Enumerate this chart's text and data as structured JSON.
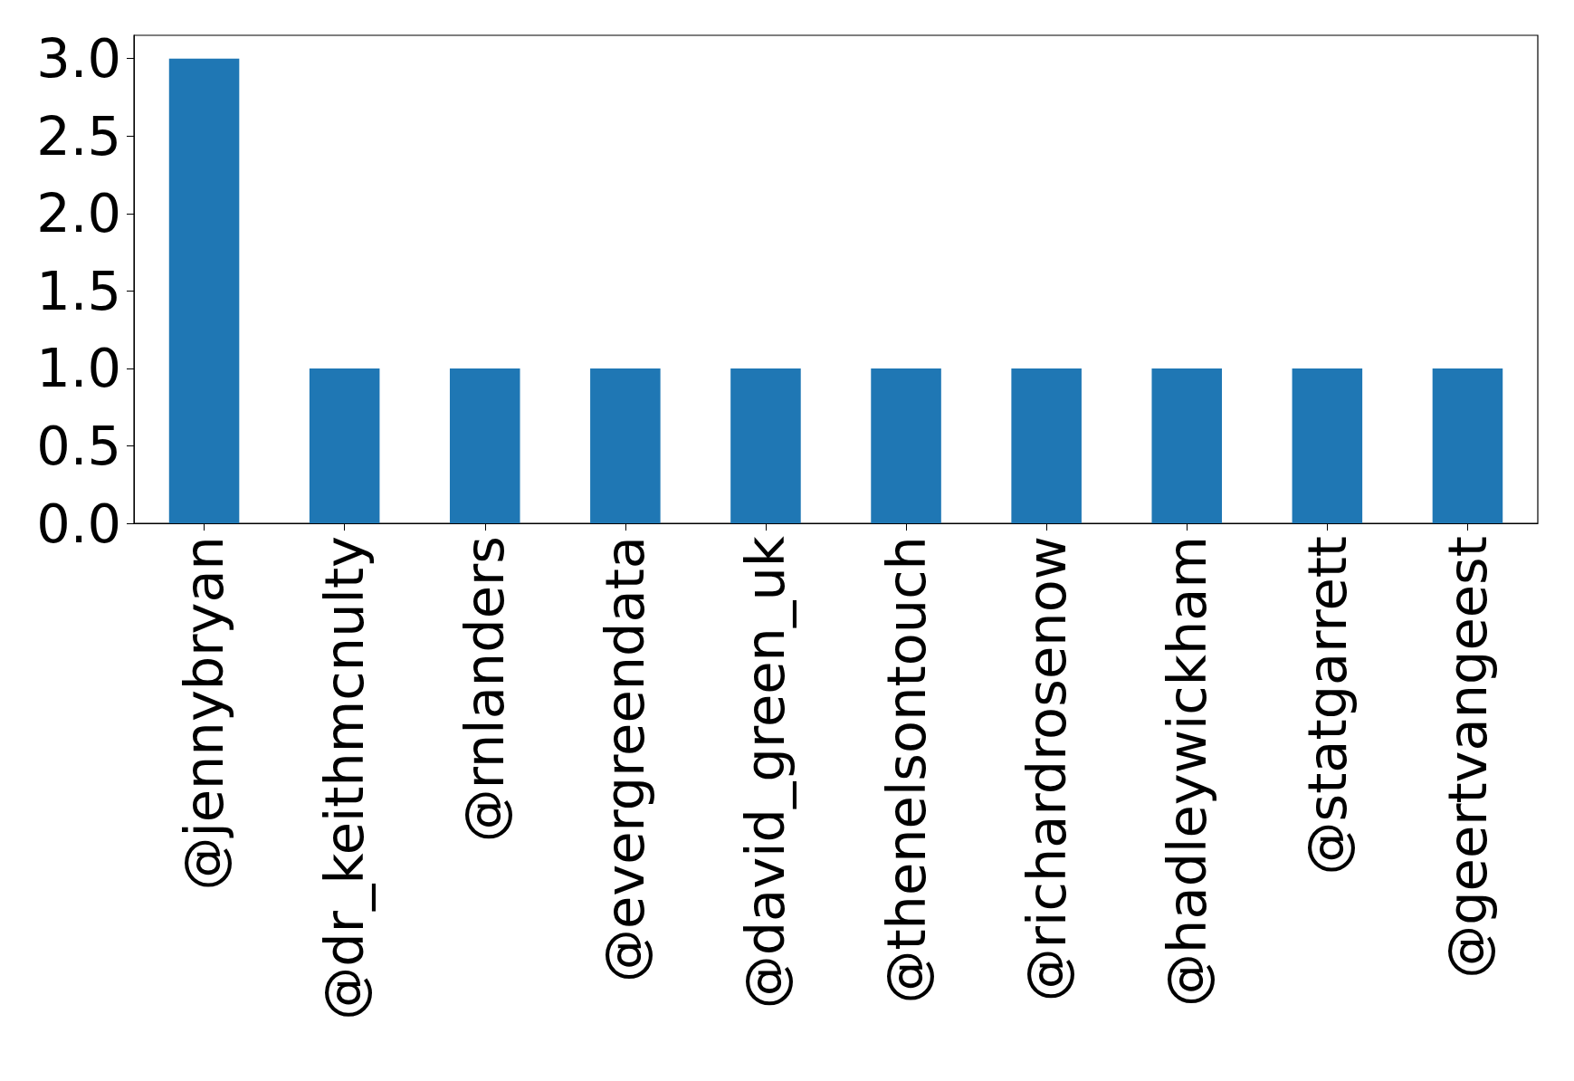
{
  "chart_data": {
    "type": "bar",
    "categories": [
      "@jennybryan",
      "@dr_keithmcnulty",
      "@rnlanders",
      "@evergreendata",
      "@david_green_uk",
      "@thenelsontouch",
      "@richardrosenow",
      "@hadleywickham",
      "@statgarrett",
      "@geertvangeest"
    ],
    "values": [
      3,
      1,
      1,
      1,
      1,
      1,
      1,
      1,
      1,
      1
    ],
    "color": "#1f77b4",
    "ylim": [
      0,
      3.15
    ],
    "yticks": [
      {
        "value": 0,
        "label": "0.0"
      },
      {
        "value": 0.5,
        "label": "0.5"
      },
      {
        "value": 1,
        "label": "1.0"
      },
      {
        "value": 1.5,
        "label": "1.5"
      },
      {
        "value": 2,
        "label": "2.0"
      },
      {
        "value": 2.5,
        "label": "2.5"
      },
      {
        "value": 3,
        "label": "3.0"
      }
    ],
    "grid": false
  }
}
